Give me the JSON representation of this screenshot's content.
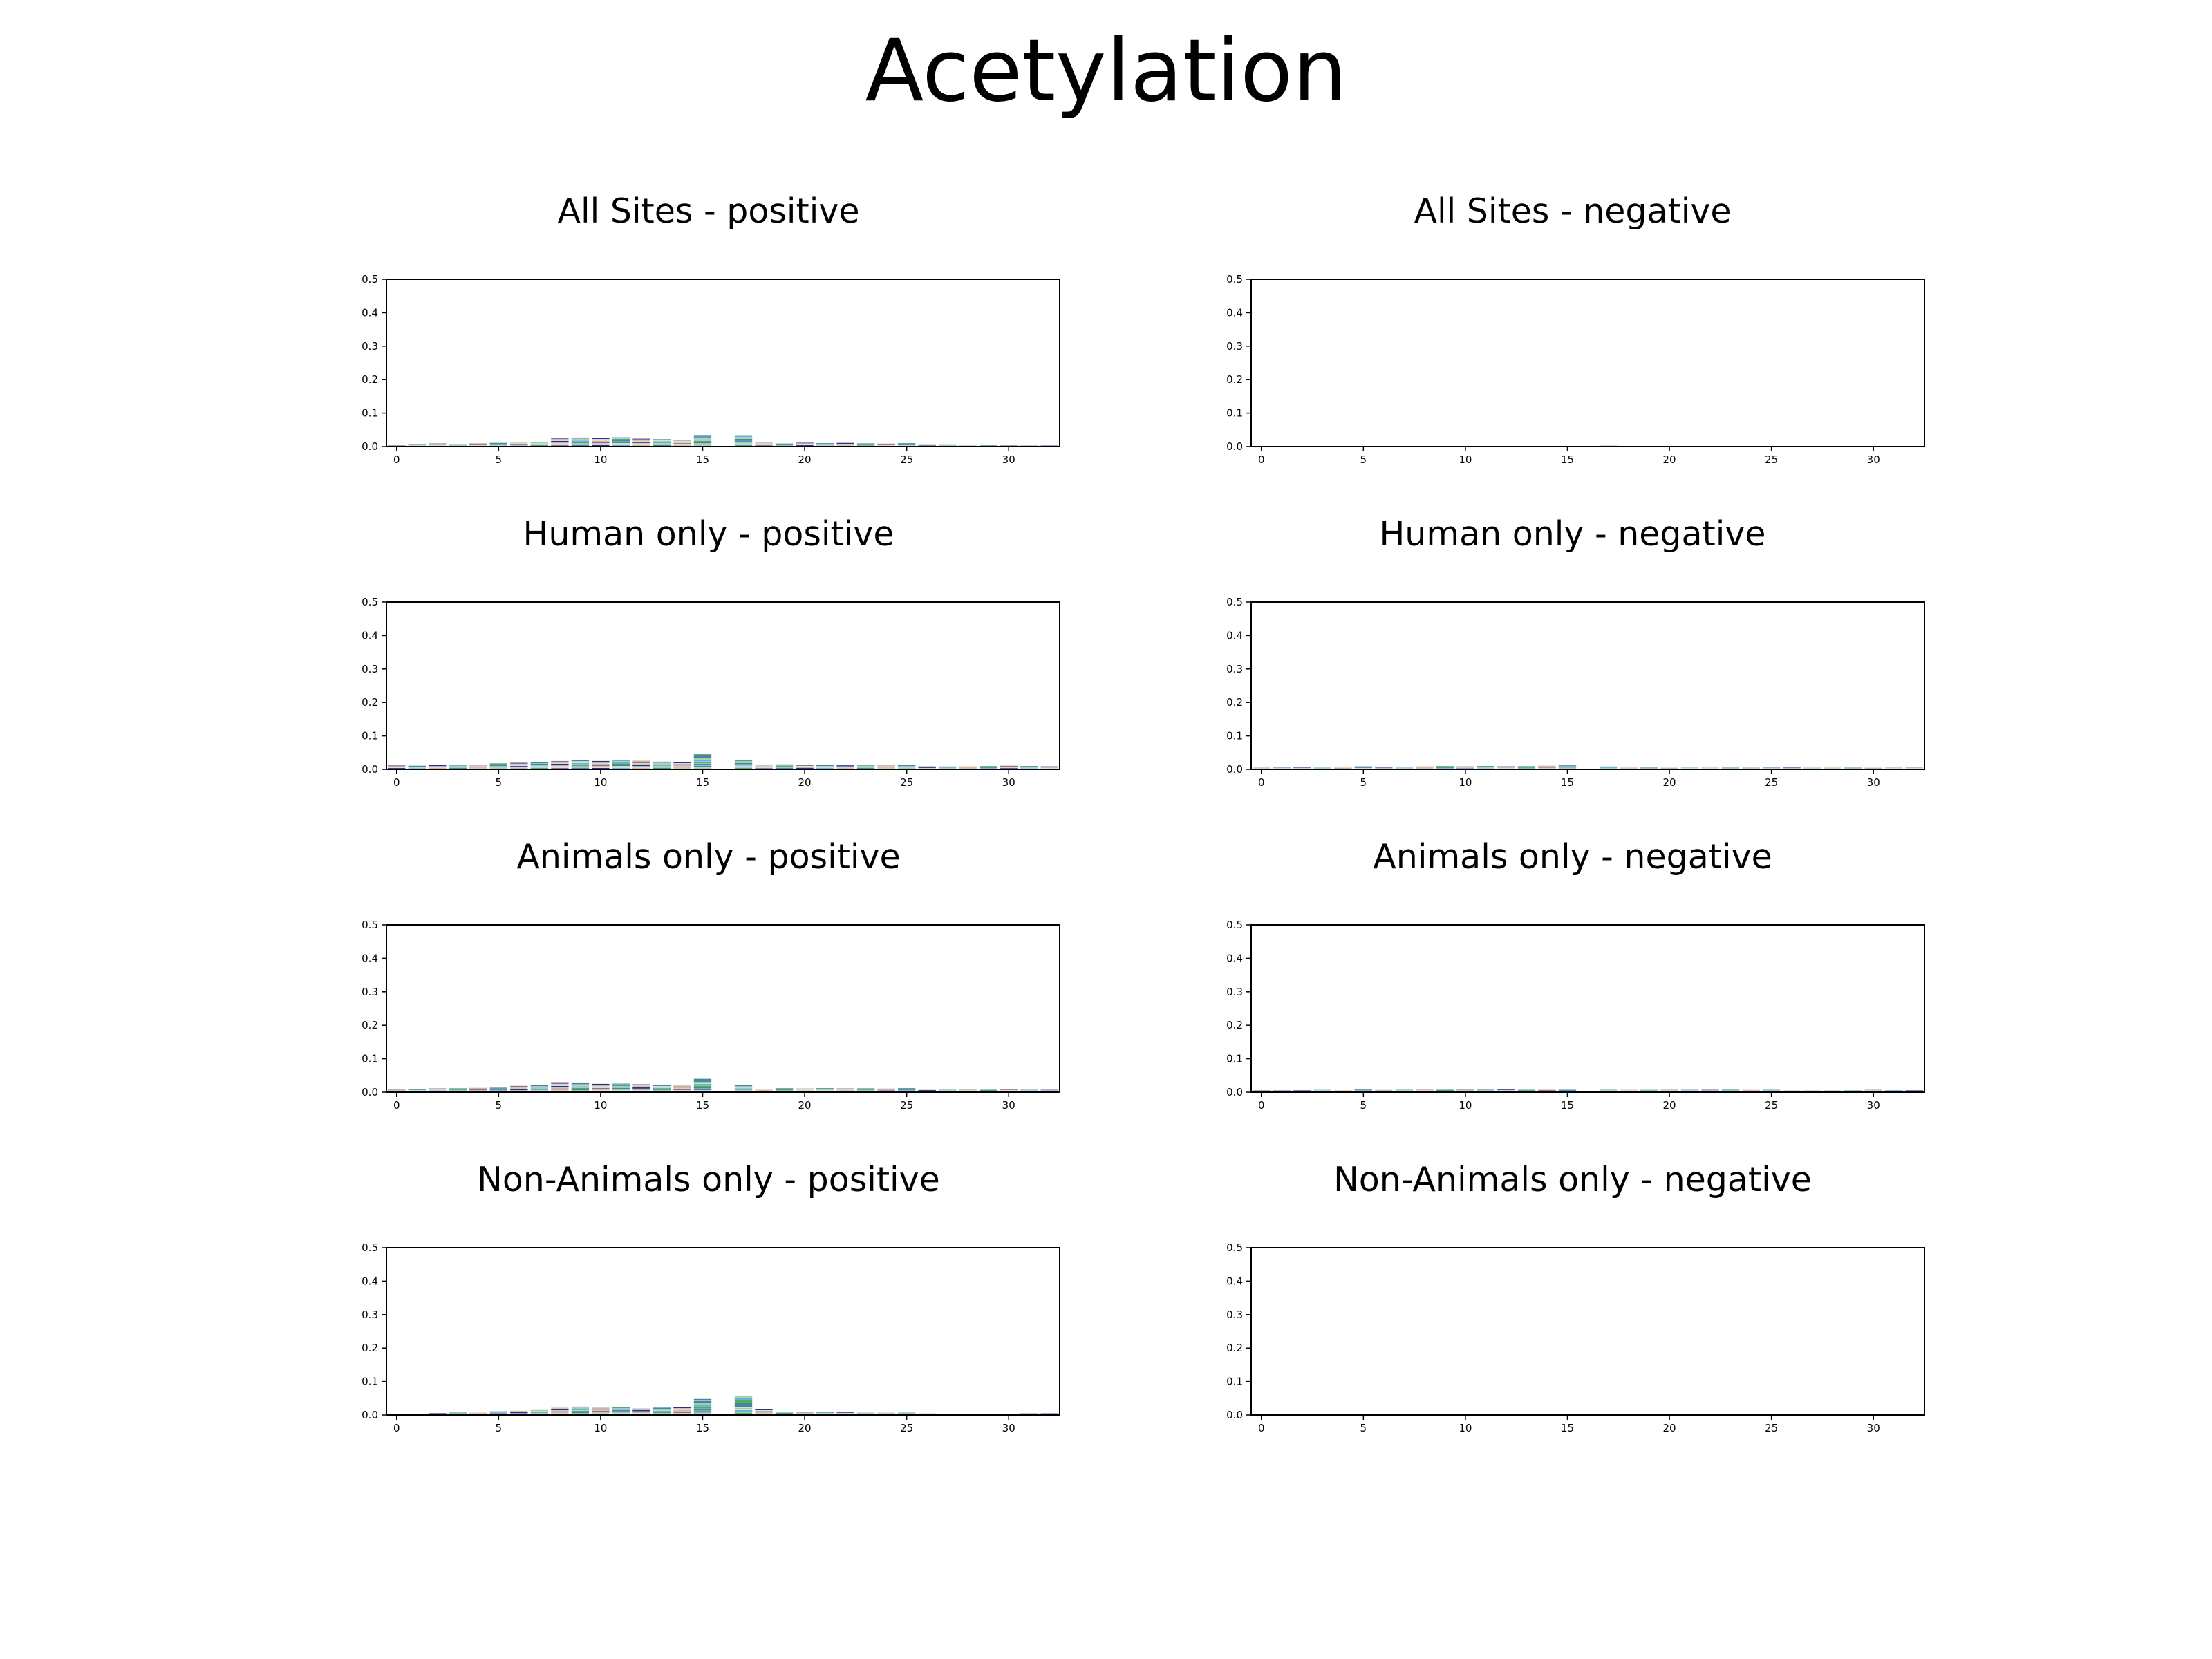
{
  "figure": {
    "title": "Acetylation"
  },
  "chart_data": [
    {
      "type": "bar",
      "title": "All Sites - positive",
      "xlabel": "",
      "ylabel": "",
      "xlim": [
        -0.5,
        32.5
      ],
      "ylim": [
        0,
        0.5
      ],
      "xticks": [
        0,
        5,
        10,
        15,
        20,
        25,
        30
      ],
      "yticks": [
        0.0,
        0.1,
        0.2,
        0.3,
        0.4,
        0.5
      ],
      "positions": [
        0,
        1,
        2,
        3,
        4,
        5,
        6,
        7,
        8,
        9,
        10,
        11,
        12,
        13,
        14,
        15,
        16,
        17,
        18,
        19,
        20,
        21,
        22,
        23,
        24,
        25,
        26,
        27,
        28,
        29,
        30,
        31,
        32
      ],
      "values": [
        0.004,
        0.006,
        0.009,
        0.007,
        0.01,
        0.011,
        0.012,
        0.013,
        0.025,
        0.027,
        0.026,
        0.028,
        0.024,
        0.022,
        0.02,
        0.035,
        0,
        0.032,
        0.012,
        0.009,
        0.012,
        0.01,
        0.011,
        0.01,
        0.009,
        0.01,
        0.006,
        0.005,
        0.004,
        0.004,
        0.004,
        0.003,
        0.003
      ],
      "grid": false
    },
    {
      "type": "bar",
      "title": "All Sites - negative",
      "xlabel": "",
      "ylabel": "",
      "xlim": [
        -0.5,
        32.5
      ],
      "ylim": [
        0,
        0.5
      ],
      "xticks": [
        0,
        5,
        10,
        15,
        20,
        25,
        30
      ],
      "yticks": [
        0.0,
        0.1,
        0.2,
        0.3,
        0.4,
        0.5
      ],
      "positions": [
        0,
        1,
        2,
        3,
        4,
        5,
        6,
        7,
        8,
        9,
        10,
        11,
        12,
        13,
        14,
        15,
        16,
        17,
        18,
        19,
        20,
        21,
        22,
        23,
        24,
        25,
        26,
        27,
        28,
        29,
        30,
        31,
        32
      ],
      "values": [
        0.001,
        0.001,
        0.001,
        0.001,
        0.001,
        0.001,
        0.001,
        0.001,
        0.001,
        0.001,
        0.001,
        0.001,
        0.001,
        0.001,
        0.001,
        0.001,
        0,
        0.003,
        0.001,
        0.001,
        0.001,
        0.001,
        0.001,
        0.001,
        0.001,
        0.001,
        0.001,
        0.001,
        0.001,
        0.001,
        0.001,
        0.001,
        0.001
      ],
      "grid": false
    },
    {
      "type": "bar",
      "title": "Human only - positive",
      "xlabel": "",
      "ylabel": "",
      "xlim": [
        -0.5,
        32.5
      ],
      "ylim": [
        0,
        0.5
      ],
      "xticks": [
        0,
        5,
        10,
        15,
        20,
        25,
        30
      ],
      "yticks": [
        0.0,
        0.1,
        0.2,
        0.3,
        0.4,
        0.5
      ],
      "positions": [
        0,
        1,
        2,
        3,
        4,
        5,
        6,
        7,
        8,
        9,
        10,
        11,
        12,
        13,
        14,
        15,
        16,
        17,
        18,
        19,
        20,
        21,
        22,
        23,
        24,
        25,
        26,
        27,
        28,
        29,
        30,
        31,
        32
      ],
      "values": [
        0.012,
        0.011,
        0.013,
        0.014,
        0.013,
        0.018,
        0.02,
        0.022,
        0.025,
        0.028,
        0.025,
        0.027,
        0.026,
        0.023,
        0.022,
        0.045,
        0,
        0.028,
        0.012,
        0.015,
        0.014,
        0.013,
        0.012,
        0.014,
        0.013,
        0.014,
        0.01,
        0.009,
        0.009,
        0.01,
        0.011,
        0.01,
        0.009
      ],
      "grid": false
    },
    {
      "type": "bar",
      "title": "Human only - negative",
      "xlabel": "",
      "ylabel": "",
      "xlim": [
        -0.5,
        32.5
      ],
      "ylim": [
        0,
        0.5
      ],
      "xticks": [
        0,
        5,
        10,
        15,
        20,
        25,
        30
      ],
      "yticks": [
        0.0,
        0.1,
        0.2,
        0.3,
        0.4,
        0.5
      ],
      "positions": [
        0,
        1,
        2,
        3,
        4,
        5,
        6,
        7,
        8,
        9,
        10,
        11,
        12,
        13,
        14,
        15,
        16,
        17,
        18,
        19,
        20,
        21,
        22,
        23,
        24,
        25,
        26,
        27,
        28,
        29,
        30,
        31,
        32
      ],
      "values": [
        0.007,
        0.006,
        0.006,
        0.007,
        0.006,
        0.009,
        0.008,
        0.008,
        0.009,
        0.01,
        0.009,
        0.01,
        0.009,
        0.01,
        0.011,
        0.012,
        0,
        0.009,
        0.008,
        0.008,
        0.008,
        0.007,
        0.008,
        0.008,
        0.007,
        0.008,
        0.008,
        0.007,
        0.008,
        0.007,
        0.008,
        0.007,
        0.007
      ],
      "grid": false
    },
    {
      "type": "bar",
      "title": "Animals only - positive",
      "xlabel": "",
      "ylabel": "",
      "xlim": [
        -0.5,
        32.5
      ],
      "ylim": [
        0,
        0.5
      ],
      "xticks": [
        0,
        5,
        10,
        15,
        20,
        25,
        30
      ],
      "yticks": [
        0.0,
        0.1,
        0.2,
        0.3,
        0.4,
        0.5
      ],
      "positions": [
        0,
        1,
        2,
        3,
        4,
        5,
        6,
        7,
        8,
        9,
        10,
        11,
        12,
        13,
        14,
        15,
        16,
        17,
        18,
        19,
        20,
        21,
        22,
        23,
        24,
        25,
        26,
        27,
        28,
        29,
        30,
        31,
        32
      ],
      "values": [
        0.009,
        0.008,
        0.011,
        0.012,
        0.013,
        0.016,
        0.019,
        0.021,
        0.028,
        0.027,
        0.025,
        0.026,
        0.024,
        0.022,
        0.02,
        0.04,
        0,
        0.022,
        0.01,
        0.012,
        0.011,
        0.012,
        0.011,
        0.012,
        0.011,
        0.012,
        0.009,
        0.008,
        0.008,
        0.009,
        0.008,
        0.007,
        0.007
      ],
      "grid": false
    },
    {
      "type": "bar",
      "title": "Animals only - negative",
      "xlabel": "",
      "ylabel": "",
      "xlim": [
        -0.5,
        32.5
      ],
      "ylim": [
        0,
        0.5
      ],
      "xticks": [
        0,
        5,
        10,
        15,
        20,
        25,
        30
      ],
      "yticks": [
        0.0,
        0.1,
        0.2,
        0.3,
        0.4,
        0.5
      ],
      "positions": [
        0,
        1,
        2,
        3,
        4,
        5,
        6,
        7,
        8,
        9,
        10,
        11,
        12,
        13,
        14,
        15,
        16,
        17,
        18,
        19,
        20,
        21,
        22,
        23,
        24,
        25,
        26,
        27,
        28,
        29,
        30,
        31,
        32
      ],
      "values": [
        0.006,
        0.006,
        0.006,
        0.007,
        0.006,
        0.008,
        0.007,
        0.008,
        0.008,
        0.009,
        0.009,
        0.009,
        0.008,
        0.009,
        0.009,
        0.01,
        0,
        0.008,
        0.007,
        0.007,
        0.007,
        0.007,
        0.007,
        0.008,
        0.007,
        0.007,
        0.006,
        0.006,
        0.006,
        0.006,
        0.007,
        0.006,
        0.006
      ],
      "grid": false
    },
    {
      "type": "bar",
      "title": "Non-Animals only - positive",
      "xlabel": "",
      "ylabel": "",
      "xlim": [
        -0.5,
        32.5
      ],
      "ylim": [
        0,
        0.5
      ],
      "xticks": [
        0,
        5,
        10,
        15,
        20,
        25,
        30
      ],
      "yticks": [
        0.0,
        0.1,
        0.2,
        0.3,
        0.4,
        0.5
      ],
      "positions": [
        0,
        1,
        2,
        3,
        4,
        5,
        6,
        7,
        8,
        9,
        10,
        11,
        12,
        13,
        14,
        15,
        16,
        17,
        18,
        19,
        20,
        21,
        22,
        23,
        24,
        25,
        26,
        27,
        28,
        29,
        30,
        31,
        32
      ],
      "values": [
        0.004,
        0.004,
        0.006,
        0.008,
        0.007,
        0.011,
        0.013,
        0.015,
        0.022,
        0.025,
        0.022,
        0.024,
        0.02,
        0.022,
        0.024,
        0.048,
        0,
        0.058,
        0.018,
        0.01,
        0.009,
        0.008,
        0.008,
        0.007,
        0.007,
        0.007,
        0.005,
        0.004,
        0.004,
        0.004,
        0.004,
        0.005,
        0.005
      ],
      "grid": false
    },
    {
      "type": "bar",
      "title": "Non-Animals only - negative",
      "xlabel": "",
      "ylabel": "",
      "xlim": [
        -0.5,
        32.5
      ],
      "ylim": [
        0,
        0.5
      ],
      "xticks": [
        0,
        5,
        10,
        15,
        20,
        25,
        30
      ],
      "yticks": [
        0.0,
        0.1,
        0.2,
        0.3,
        0.4,
        0.5
      ],
      "positions": [
        0,
        1,
        2,
        3,
        4,
        5,
        6,
        7,
        8,
        9,
        10,
        11,
        12,
        13,
        14,
        15,
        16,
        17,
        18,
        19,
        20,
        21,
        22,
        23,
        24,
        25,
        26,
        27,
        28,
        29,
        30,
        31,
        32
      ],
      "values": [
        0.003,
        0.003,
        0.004,
        0.003,
        0.003,
        0.003,
        0.004,
        0.003,
        0.004,
        0.004,
        0.004,
        0.003,
        0.004,
        0.003,
        0.004,
        0.004,
        0,
        0.004,
        0.004,
        0.003,
        0.004,
        0.004,
        0.003,
        0.003,
        0.003,
        0.004,
        0.003,
        0.003,
        0.003,
        0.003,
        0.003,
        0.003,
        0.003
      ],
      "grid": false
    }
  ]
}
